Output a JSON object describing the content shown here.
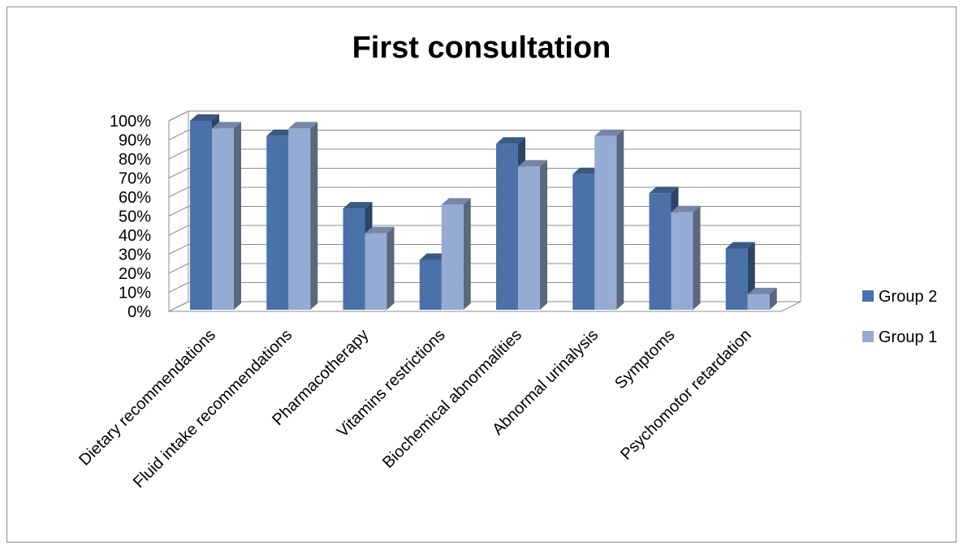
{
  "chart_data": {
    "type": "bar",
    "title": "First consultation",
    "categories": [
      "Dietary recommendations",
      "Fluid intake recommendations",
      "Pharmacotherapy",
      "Vitamins restrictions",
      "Biochemical abnormalities",
      "Abnormal urinalysis",
      "Symptoms",
      "Psychomotor retardation"
    ],
    "series": [
      {
        "name": "Group 2",
        "color": "#4a72a8",
        "values": [
          100,
          92,
          54,
          27,
          88,
          72,
          62,
          33
        ]
      },
      {
        "name": "Group 1",
        "color": "#95abd4",
        "values": [
          96,
          96,
          41,
          56,
          76,
          92,
          52,
          9
        ]
      }
    ],
    "yticks": [
      "0%",
      "10%",
      "20%",
      "30%",
      "40%",
      "50%",
      "60%",
      "70%",
      "80%",
      "90%",
      "100%"
    ],
    "ylim": [
      0,
      100
    ],
    "xlabel": "",
    "ylabel": "",
    "grid": true,
    "legend_position": "right",
    "style": "3d-clustered-column"
  }
}
